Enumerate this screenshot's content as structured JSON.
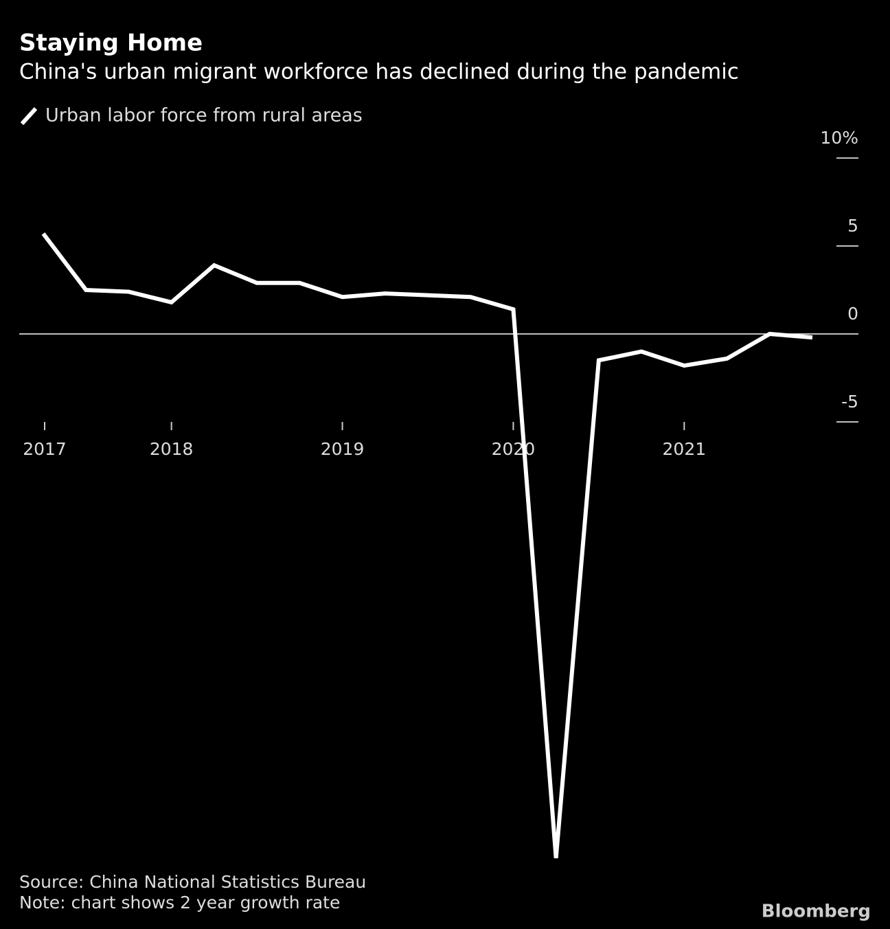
{
  "chart_data": {
    "type": "line",
    "title": "Staying Home",
    "subtitle": "China's urban migrant workforce has declined during the pandemic",
    "categories": [
      "2017",
      null,
      null,
      "2018",
      null,
      null,
      null,
      "2019",
      null,
      null,
      null,
      "2020",
      null,
      null,
      null,
      "2021",
      null,
      null,
      null
    ],
    "series": [
      {
        "name": "Urban labor force from rural areas",
        "color": "#ffffff",
        "values": [
          5.7,
          2.5,
          2.4,
          1.8,
          3.9,
          2.9,
          2.9,
          2.1,
          2.3,
          2.2,
          2.1,
          1.4,
          -29.8,
          -1.5,
          -1.0,
          -1.8,
          -1.4,
          0.0,
          -0.2
        ]
      }
    ],
    "ylim": [
      -30,
      10
    ],
    "yticks": [
      -5,
      0,
      5,
      {
        "value": 10,
        "label": "10%"
      }
    ],
    "source": "Source: China National Statistics Bureau",
    "note": "Note: chart shows 2 year growth rate",
    "brand": "Bloomberg"
  }
}
